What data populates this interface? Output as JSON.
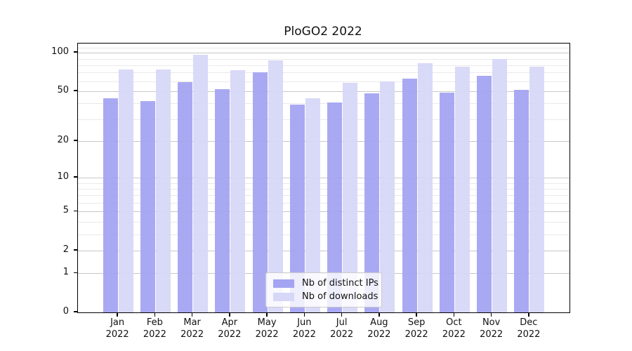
{
  "chart_data": {
    "type": "bar",
    "title": "PloGO2 2022",
    "y_scale": "log1p",
    "categories": [
      "Jan",
      "Feb",
      "Mar",
      "Apr",
      "May",
      "Jun",
      "Jul",
      "Aug",
      "Sep",
      "Oct",
      "Nov",
      "Dec"
    ],
    "category_year": "2022",
    "series": [
      {
        "name": "Nb of distinct IPs",
        "color": "#a4a4f2",
        "values": [
          44,
          42,
          59,
          52,
          70,
          39,
          41,
          48,
          63,
          49,
          66,
          51
        ]
      },
      {
        "name": "Nb of downloads",
        "color": "#d7d7f8",
        "values": [
          74,
          74,
          96,
          73,
          87,
          44,
          58,
          60,
          83,
          78,
          89,
          78
        ]
      }
    ],
    "y_ticks": [
      0,
      1,
      2,
      5,
      10,
      20,
      50,
      100
    ],
    "y_minor_gridlines": [
      3,
      4,
      6,
      7,
      8,
      9,
      30,
      40,
      60,
      70,
      80,
      90,
      110
    ],
    "y_axis_max_value": 118,
    "grid": true,
    "legend_position": "lower center",
    "colors": {
      "major_grid": "#c8c8c8",
      "minor_grid": "#eaeaea",
      "axis": "#000000",
      "text": "#111111",
      "background": "#ffffff"
    }
  }
}
